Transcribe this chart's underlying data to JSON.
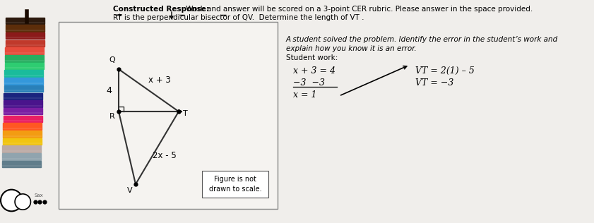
{
  "title_bold": "Constructed Response:",
  "title_normal": " Work and answer will be scored on a 3-point CER rubric. Please answer in the space provided.",
  "subtitle": "RT is the perpendicular bisector of QV.  Determine the length of VT .",
  "bg_color": "#f0eeeb",
  "box_bg": "#e8e6e2",
  "geometry_label_Q": "Q",
  "geometry_label_R": "R",
  "geometry_label_T": "T",
  "geometry_label_V": "V",
  "geometry_label_4": "4",
  "geometry_label_x3": "x + 3",
  "geometry_label_2x5": "2x - 5",
  "student_work_title": "A student solved the problem. Identify the error in the student’s work and",
  "student_work_line2": "explain how you know it is an error.",
  "student_work_label": "Student work:",
  "eq1_line1": "x + 3 = 4",
  "eq1_line2": "−3  −3",
  "eq1_line3": "x = 1",
  "eq2_line1": "VT = 2(1) – 5",
  "eq2_line2": "VT = −3",
  "figure_note": "Figure is not\ndrawn to scale.",
  "crayon_colors": [
    "#2d1a0e",
    "#5c2d0a",
    "#8b1a1a",
    "#c0392b",
    "#e74c3c",
    "#27ae60",
    "#2ecc71",
    "#1abc9c",
    "#3498db",
    "#2980b9",
    "#1a237e",
    "#4a148c",
    "#7b1fa2",
    "#e91e63",
    "#ff5722",
    "#f39c12",
    "#f1c40f",
    "#bcaaa4",
    "#90a4ae",
    "#607d8b"
  ]
}
